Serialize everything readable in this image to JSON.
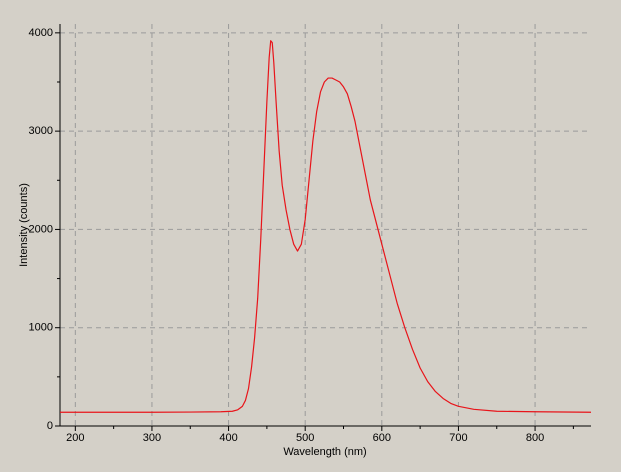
{
  "chart_data": {
    "type": "line",
    "xlabel": "Wavelength (nm)",
    "ylabel": "Intensity (counts)",
    "x": [
      180,
      250,
      300,
      350,
      390,
      405,
      412,
      418,
      422,
      426,
      430,
      434,
      438,
      442,
      446,
      450,
      453,
      455,
      457,
      459,
      462,
      466,
      470,
      475,
      480,
      485,
      490,
      495,
      500,
      505,
      510,
      515,
      520,
      525,
      530,
      535,
      540,
      545,
      550,
      555,
      560,
      565,
      570,
      575,
      580,
      585,
      590,
      595,
      600,
      610,
      620,
      630,
      640,
      650,
      660,
      670,
      680,
      690,
      700,
      720,
      750,
      800,
      873
    ],
    "values": [
      140,
      140,
      140,
      142,
      145,
      150,
      165,
      200,
      260,
      380,
      600,
      900,
      1300,
      1900,
      2600,
      3300,
      3750,
      3920,
      3900,
      3700,
      3300,
      2800,
      2450,
      2200,
      2000,
      1850,
      1780,
      1850,
      2100,
      2500,
      2900,
      3200,
      3400,
      3500,
      3540,
      3540,
      3520,
      3500,
      3450,
      3380,
      3250,
      3100,
      2900,
      2700,
      2500,
      2300,
      2150,
      2000,
      1850,
      1550,
      1250,
      1000,
      780,
      590,
      450,
      350,
      280,
      230,
      200,
      170,
      150,
      145,
      140
    ],
    "color": "#e8141a",
    "xlim": [
      180,
      873
    ],
    "ylim": [
      0,
      4090
    ],
    "xticks": [
      200,
      300,
      400,
      500,
      600,
      700,
      800
    ],
    "yticks": [
      0,
      1000,
      2000,
      3000,
      4000
    ],
    "xminorticks": [
      250,
      350,
      450,
      550,
      650,
      750,
      850
    ],
    "yminorticks": [
      500,
      1500,
      2500,
      3500
    ],
    "grid": true
  }
}
